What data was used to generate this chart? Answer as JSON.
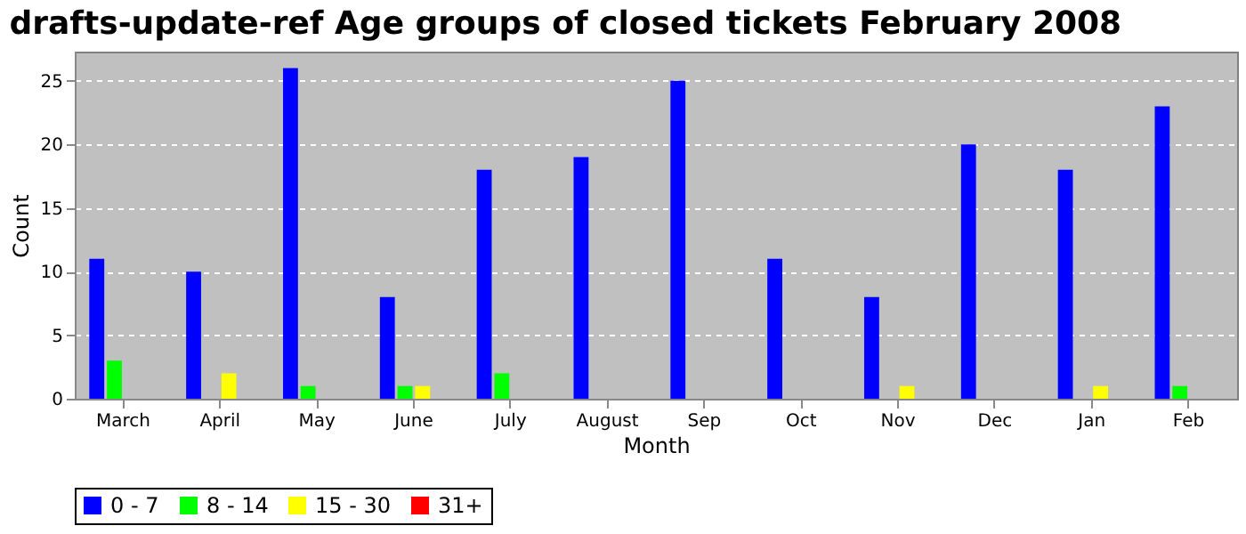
{
  "chart_data": {
    "type": "bar",
    "title": "drafts-update-ref Age groups of closed tickets February 2008",
    "xlabel": "Month",
    "ylabel": "Count",
    "categories": [
      "March",
      "April",
      "May",
      "June",
      "July",
      "August",
      "Sep",
      "Oct",
      "Nov",
      "Dec",
      "Jan",
      "Feb"
    ],
    "series": [
      {
        "name": "0 - 7",
        "color": "#0000ff",
        "values": [
          11,
          10,
          26,
          8,
          18,
          19,
          25,
          11,
          8,
          20,
          18,
          23
        ]
      },
      {
        "name": "8 - 14",
        "color": "#00ff00",
        "values": [
          3,
          0,
          1,
          1,
          2,
          0,
          0,
          0,
          0,
          0,
          0,
          1
        ]
      },
      {
        "name": "15 - 30",
        "color": "#ffff00",
        "values": [
          0,
          2,
          0,
          1,
          0,
          0,
          0,
          0,
          1,
          0,
          1,
          0
        ]
      },
      {
        "name": "31+",
        "color": "#ff0000",
        "values": [
          0,
          0,
          0,
          0,
          0,
          0,
          0,
          0,
          0,
          0,
          0,
          0
        ]
      }
    ],
    "ylim": [
      0,
      27.3
    ],
    "yticks": [
      0,
      5,
      10,
      15,
      20,
      25
    ],
    "grid": "y",
    "legend": "bottom"
  }
}
